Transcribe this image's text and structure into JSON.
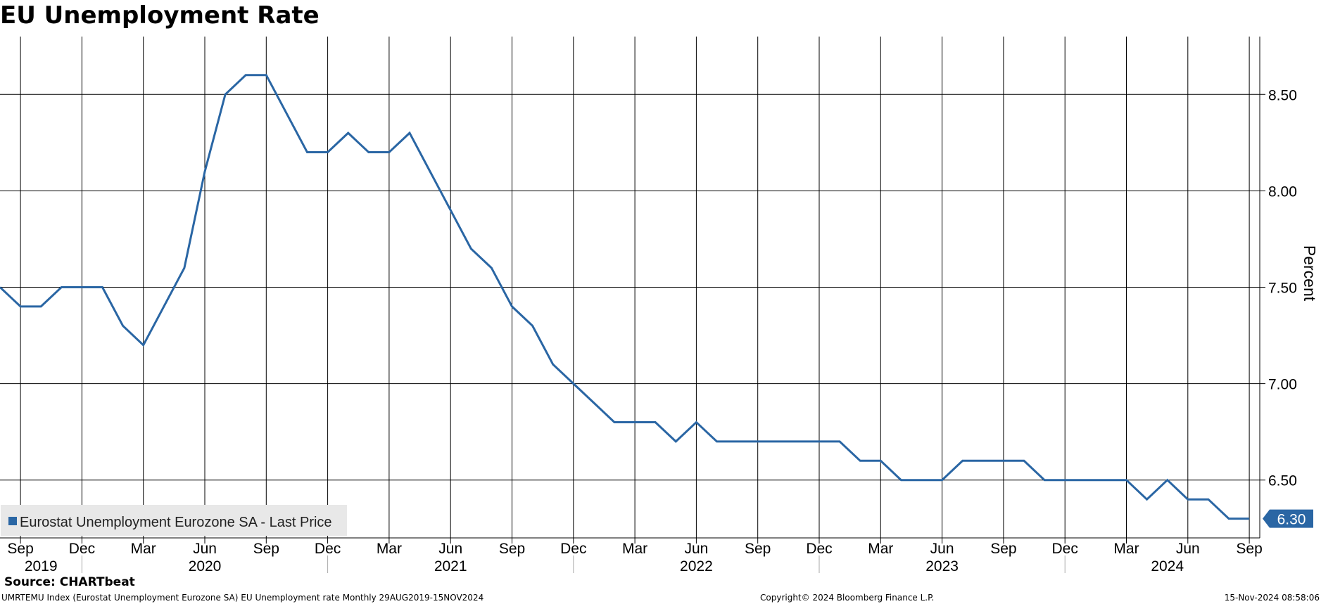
{
  "title": "EU Unemployment Rate",
  "source": "Source: CHARTbeat",
  "footer": {
    "left": "UMRTEMU Index (Eurostat Unemployment Eurozone SA) EU Unemployment rate  Monthly 29AUG2019-15NOV2024",
    "center": "Copyright© 2024 Bloomberg Finance L.P.",
    "right": "15-Nov-2024 08:58:06"
  },
  "colors": {
    "line": "#2a66a4",
    "grid": "#000000",
    "background": "#ffffff",
    "legend_bg": "#e8e8e8"
  },
  "chart_data": {
    "type": "line",
    "ylabel": "Percent",
    "ylim": [
      6.2,
      8.8
    ],
    "yticks": [
      "8.50",
      "8.00",
      "7.50",
      "7.00",
      "6.50"
    ],
    "grid": true,
    "legend_position": "bottom-left",
    "last_value_label": "6.30",
    "x_month_labels": [
      "Sep",
      "Dec",
      "Mar",
      "Jun",
      "Sep",
      "Dec",
      "Mar",
      "Jun",
      "Sep",
      "Dec",
      "Mar",
      "Jun",
      "Sep",
      "Dec",
      "Mar",
      "Jun",
      "Sep",
      "Dec",
      "Mar",
      "Jun",
      "Sep"
    ],
    "x_year_labels": [
      "2019",
      "2020",
      "2021",
      "2022",
      "2023",
      "2024"
    ],
    "series": [
      {
        "name": "Eurostat Unemployment Eurozone SA - Last Price",
        "x": [
          "2019-08",
          "2019-09",
          "2019-10",
          "2019-11",
          "2019-12",
          "2020-01",
          "2020-02",
          "2020-03",
          "2020-04",
          "2020-05",
          "2020-06",
          "2020-07",
          "2020-08",
          "2020-09",
          "2020-10",
          "2020-11",
          "2020-12",
          "2021-01",
          "2021-02",
          "2021-03",
          "2021-04",
          "2021-05",
          "2021-06",
          "2021-07",
          "2021-08",
          "2021-09",
          "2021-10",
          "2021-11",
          "2021-12",
          "2022-01",
          "2022-02",
          "2022-03",
          "2022-04",
          "2022-05",
          "2022-06",
          "2022-07",
          "2022-08",
          "2022-09",
          "2022-10",
          "2022-11",
          "2022-12",
          "2023-01",
          "2023-02",
          "2023-03",
          "2023-04",
          "2023-05",
          "2023-06",
          "2023-07",
          "2023-08",
          "2023-09",
          "2023-10",
          "2023-11",
          "2023-12",
          "2024-01",
          "2024-02",
          "2024-03",
          "2024-04",
          "2024-05",
          "2024-06",
          "2024-07",
          "2024-08",
          "2024-09"
        ],
        "values": [
          7.5,
          7.4,
          7.4,
          7.5,
          7.5,
          7.5,
          7.3,
          7.2,
          7.4,
          7.6,
          8.1,
          8.5,
          8.6,
          8.6,
          8.4,
          8.2,
          8.2,
          8.3,
          8.2,
          8.2,
          8.3,
          8.1,
          7.9,
          7.7,
          7.6,
          7.4,
          7.3,
          7.1,
          7.0,
          6.9,
          6.8,
          6.8,
          6.8,
          6.7,
          6.8,
          6.7,
          6.7,
          6.7,
          6.7,
          6.7,
          6.7,
          6.7,
          6.6,
          6.6,
          6.5,
          6.5,
          6.5,
          6.6,
          6.6,
          6.6,
          6.6,
          6.5,
          6.5,
          6.5,
          6.5,
          6.5,
          6.4,
          6.5,
          6.4,
          6.4,
          6.3,
          6.3
        ]
      }
    ]
  }
}
